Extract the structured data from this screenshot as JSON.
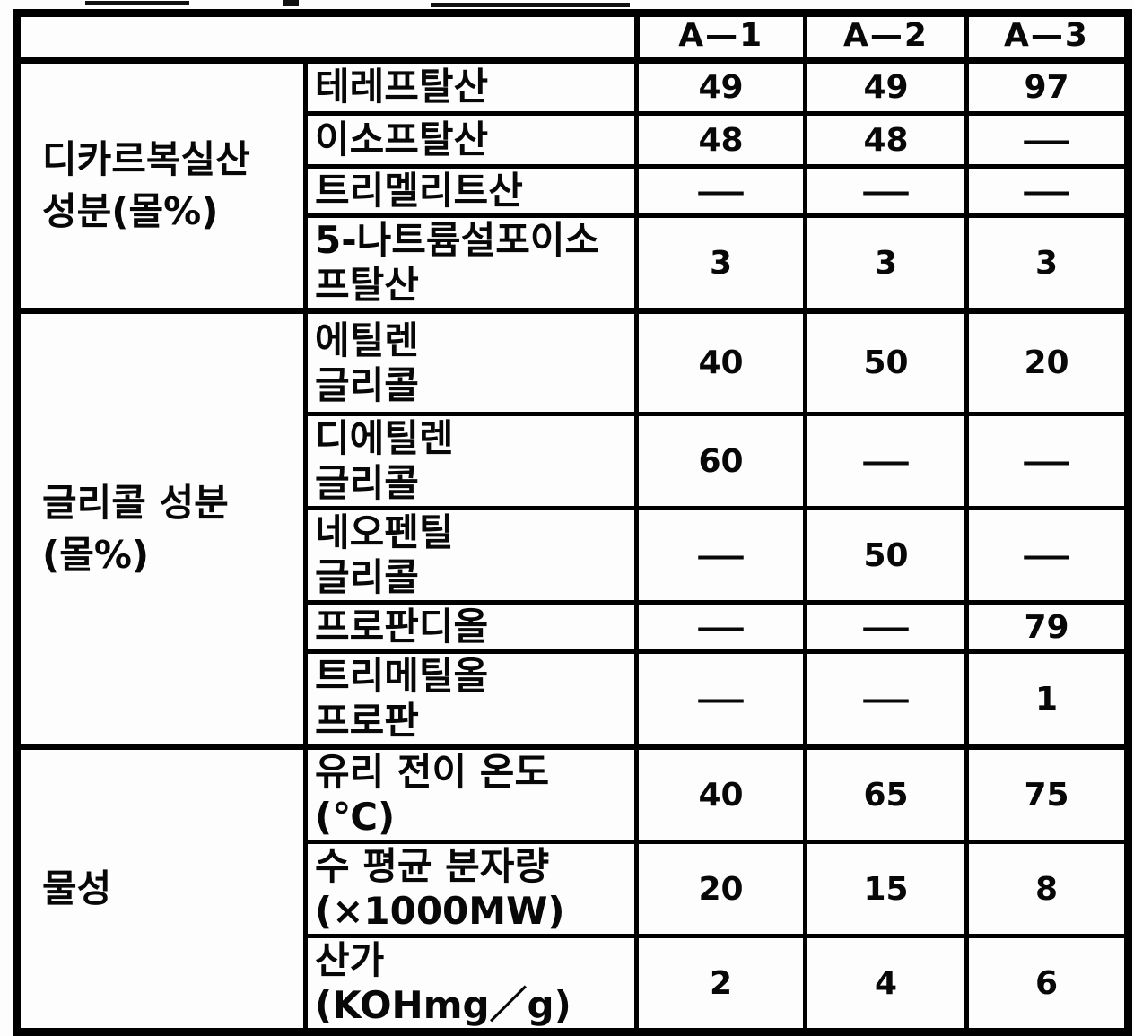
{
  "table": {
    "border_color": "#000000",
    "background_color": "#fdfdfd",
    "empty_value": "—",
    "header": {
      "corner_label": "",
      "columns": [
        "A—1",
        "A—2",
        "A—3"
      ]
    },
    "sections": [
      {
        "group_label": "디카르복실산 성분(몰%)",
        "group_label_lines": [
          "디카르복실산",
          "성분(몰%)"
        ],
        "rows": [
          {
            "label": "테레프탈산",
            "label_lines": [
              "테레프탈산"
            ],
            "values": [
              "49",
              "49",
              "97"
            ]
          },
          {
            "label": "이소프탈산",
            "label_lines": [
              "이소프탈산"
            ],
            "values": [
              "48",
              "48",
              "—"
            ]
          },
          {
            "label": "트리멜리트산",
            "label_lines": [
              "트리멜리트산"
            ],
            "values": [
              "—",
              "—",
              "—"
            ]
          },
          {
            "label": "5-나트륨설포이소프탈산",
            "label_lines": [
              "5-나트륨설포이소",
              "프탈산"
            ],
            "values": [
              "3",
              "3",
              "3"
            ]
          }
        ]
      },
      {
        "group_label": "글리콜 성분 (몰%)",
        "group_label_lines": [
          "글리콜 성분",
          "(몰%)"
        ],
        "rows": [
          {
            "label": "에틸렌 글리콜",
            "label_lines": [
              "에틸렌",
              "글리콜"
            ],
            "values": [
              "40",
              "50",
              "20"
            ]
          },
          {
            "label": "디에틸렌 글리콜",
            "label_lines": [
              "디에틸렌",
              "글리콜"
            ],
            "values": [
              "60",
              "—",
              "—"
            ]
          },
          {
            "label": "네오펜틸 글리콜",
            "label_lines": [
              "네오펜틸",
              "글리콜"
            ],
            "values": [
              "—",
              "50",
              "—"
            ]
          },
          {
            "label": "프로판디올",
            "label_lines": [
              "프로판디올"
            ],
            "values": [
              "—",
              "—",
              "79"
            ]
          },
          {
            "label": "트리메틸올 프로판",
            "label_lines": [
              "트리메틸올",
              "프로판"
            ],
            "values": [
              "—",
              "—",
              "1"
            ]
          }
        ]
      },
      {
        "group_label": "물성",
        "group_label_lines": [
          "물성"
        ],
        "rows": [
          {
            "label": "유리 전이 온도 (℃)",
            "label_lines": [
              "유리 전이 온도",
              "(℃)"
            ],
            "values": [
              "40",
              "65",
              "75"
            ]
          },
          {
            "label": "수 평균 분자량 (×1000MW)",
            "label_lines": [
              "수 평균 분자량",
              "(×1000MW)"
            ],
            "values": [
              "20",
              "15",
              "8"
            ]
          },
          {
            "label": "산가 (KOHmg／g)",
            "label_lines": [
              "산가",
              "(KOHmg／g)"
            ],
            "values": [
              "2",
              "4",
              "6"
            ]
          }
        ]
      }
    ]
  }
}
